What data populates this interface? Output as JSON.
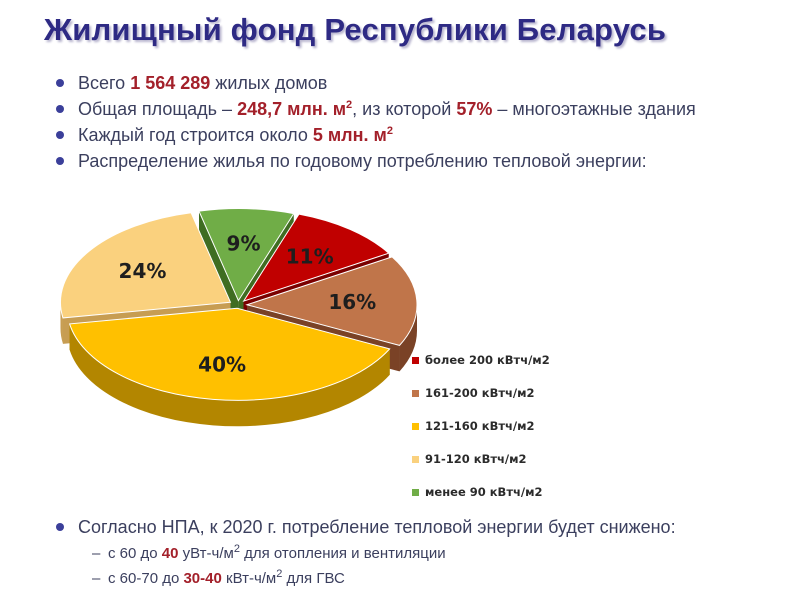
{
  "title": "Жилищный фонд Республики Беларусь",
  "bullets": [
    {
      "pre": "Всего ",
      "hl": "1 564 289",
      "post": " жилых домов"
    },
    {
      "pre": "Общая площадь – ",
      "hl": "248,7 млн. м",
      "sup": "2",
      "post": ", из которой ",
      "hl2": "57%",
      "post2": " – многоэтажные здания"
    },
    {
      "pre": "Каждый год строится около ",
      "hl": "5 млн. м",
      "sup": "2"
    },
    {
      "pre": "Распределение жилья по годовому потреблению тепловой энергии:"
    }
  ],
  "chart_data": {
    "type": "pie",
    "title": "",
    "legend_position": "right",
    "slices": [
      {
        "label": "более 200 кВтч/м2",
        "value": 11,
        "display": "11%",
        "color": "#c00000"
      },
      {
        "label": "161-200 кВтч/м2",
        "value": 16,
        "display": "16%",
        "color": "#c0754a"
      },
      {
        "label": "121-160 кВтч/м2",
        "value": 40,
        "display": "40%",
        "color": "#ffc000"
      },
      {
        "label": "91-120 кВтч/м2",
        "value": 24,
        "display": "24%",
        "color": "#fad17e"
      },
      {
        "label": "менее 90 кВтч/м2",
        "value": 9,
        "display": "9%",
        "color": "#70ad47"
      }
    ]
  },
  "note": {
    "text": "Согласно НПА, к 2020 г. потребление тепловой энергии будет снижено:",
    "items": [
      {
        "pre": "с 60 до ",
        "hl": "40",
        "unit": " уВт-ч/м",
        "sup": "2",
        "post": " для отопления и вентиляции"
      },
      {
        "pre": "с 60-70 до ",
        "hl": "30-40",
        "unit": " кВт-ч/м",
        "sup": "2",
        "post": " для ГВС"
      }
    ]
  },
  "colors": {
    "title": "#2e2a84",
    "highlight": "#a3202a",
    "bullet": "#3b3f9a"
  }
}
